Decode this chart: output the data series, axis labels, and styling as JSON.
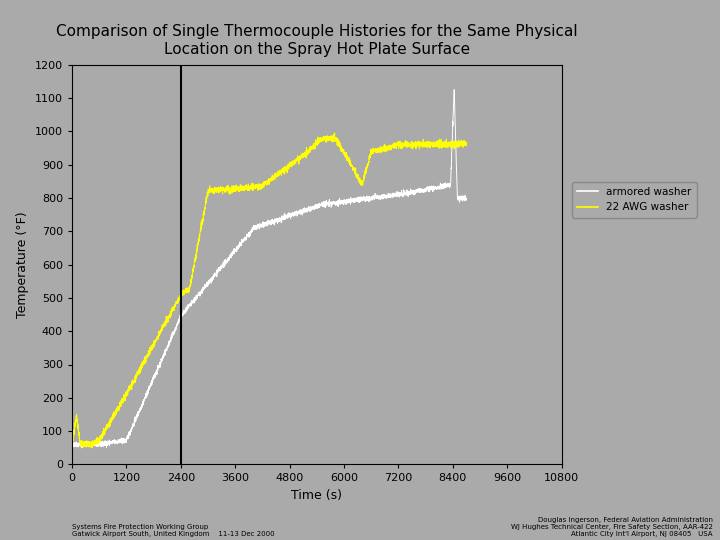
{
  "title": "Comparison of Single Thermocouple Histories for the Same Physical\nLocation on the Spray Hot Plate Surface",
  "xlabel": "Time (s)",
  "ylabel": "Temperature (°F)",
  "xlim": [
    0,
    10800
  ],
  "ylim": [
    0,
    1200
  ],
  "xticks": [
    0,
    1200,
    2400,
    3600,
    4800,
    6000,
    7200,
    8400,
    9600,
    10800
  ],
  "yticks": [
    0,
    100,
    200,
    300,
    400,
    500,
    600,
    700,
    800,
    900,
    1000,
    1100,
    1200
  ],
  "vline_x": 2400,
  "plot_bg_color": "#aaaaaa",
  "fig_bg_color": "#aaaaaa",
  "legend_labels": [
    "armored washer",
    "22 AWG washer"
  ],
  "left_footer": "Systems Fire Protection Working Group\nGatwick Airport South, United Kingdom    11-13 Dec 2000",
  "right_footer": "Douglas Ingerson, Federal Aviation Administration\nWJ Hughes Technical Center, Fire Safety Section, AAR-422\nAtlantic City Int'l Airport, NJ 08405   USA"
}
